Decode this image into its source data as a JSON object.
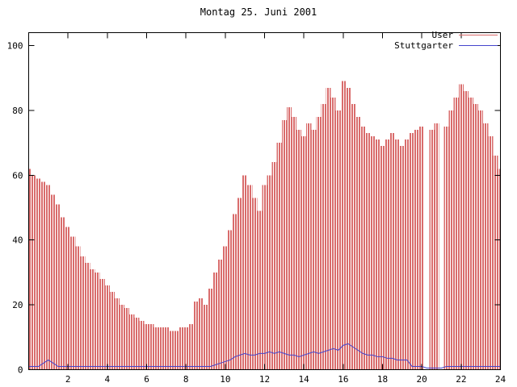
{
  "chart_data": {
    "type": "bar",
    "title": "Montag 25. Juni 2001",
    "xlabel": "",
    "ylabel": "",
    "xlim": [
      0,
      24
    ],
    "ylim": [
      0,
      100
    ],
    "xticks": [
      2,
      4,
      6,
      8,
      10,
      12,
      14,
      16,
      18,
      20,
      22,
      24
    ],
    "yticks": [
      0,
      20,
      40,
      60,
      80,
      100
    ],
    "grid": false,
    "legend_position": "top-right",
    "x_start": 0,
    "x_step": 0.25,
    "series": [
      {
        "name": "User",
        "style": "impulses",
        "color": "#d96c6c",
        "values": [
          62,
          60,
          59,
          58,
          57,
          54,
          51,
          47,
          44,
          41,
          38,
          35,
          33,
          31,
          30,
          28,
          26,
          24,
          22,
          20,
          19,
          17,
          16,
          15,
          14,
          14,
          13,
          13,
          13,
          12,
          12,
          13,
          13,
          14,
          21,
          22,
          20,
          25,
          30,
          34,
          38,
          43,
          48,
          53,
          60,
          57,
          53,
          49,
          57,
          60,
          64,
          70,
          77,
          81,
          78,
          74,
          72,
          76,
          74,
          78,
          82,
          87,
          84,
          80,
          89,
          87,
          82,
          78,
          75,
          73,
          72,
          71,
          69,
          71,
          73,
          71,
          69,
          71,
          73,
          74,
          75,
          0,
          74,
          76,
          0,
          75,
          80,
          84,
          88,
          86,
          84,
          82,
          80,
          76,
          72,
          66,
          62
        ]
      },
      {
        "name": "Stuttgarter",
        "style": "line",
        "color": "#4444cc",
        "values": [
          1,
          1,
          1,
          2,
          3,
          2,
          1,
          1,
          1,
          1,
          1,
          1,
          1,
          1,
          1,
          1,
          1,
          1,
          1,
          1,
          1,
          1,
          1,
          1,
          1,
          1,
          1,
          1,
          1,
          1,
          1,
          1,
          1,
          1,
          1,
          1,
          1,
          1,
          1.5,
          2,
          2.5,
          3,
          4,
          4.5,
          5,
          4.5,
          4.5,
          5,
          5,
          5.5,
          5,
          5.5,
          5,
          4.5,
          4.5,
          4,
          4.5,
          5,
          5.5,
          5,
          5.5,
          6,
          6.5,
          6,
          7.5,
          8,
          7,
          6,
          5,
          4.5,
          4.5,
          4,
          4,
          3.5,
          3.5,
          3,
          3,
          3,
          1,
          1,
          1,
          0.5,
          0.5,
          0.5,
          0.5,
          1,
          1,
          1,
          1,
          1,
          1,
          1,
          1,
          1,
          1,
          1,
          1
        ]
      }
    ],
    "axis_color": "#000000",
    "background_color": "#ffffff"
  }
}
